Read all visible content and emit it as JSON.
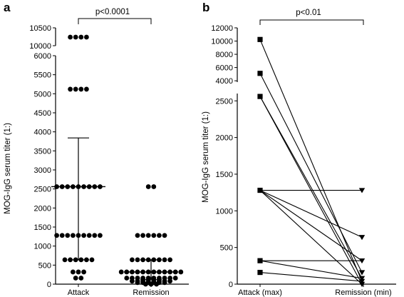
{
  "chart_data": [
    {
      "panel": "a",
      "type": "scatter",
      "ylabel": "MOG-IgG serum titer (1:)",
      "categories": [
        "Attack",
        "Remission"
      ],
      "y_axis_lower": {
        "range": [
          0,
          6000
        ],
        "ticks": [
          0,
          500,
          1000,
          1500,
          2000,
          2500,
          3000,
          3500,
          4000,
          4500,
          5000,
          5500,
          6000
        ]
      },
      "y_axis_upper": {
        "range": [
          10000,
          10500
        ],
        "ticks": [
          10000,
          10500
        ]
      },
      "significance": "p<0.0001",
      "series": [
        {
          "category": "Attack",
          "levels": [
            {
              "y": 10240,
              "count": 4
            },
            {
              "y": 5120,
              "count": 4
            },
            {
              "y": 2560,
              "count": 9
            },
            {
              "y": 1280,
              "count": 9
            },
            {
              "y": 640,
              "count": 6
            },
            {
              "y": 320,
              "count": 3
            },
            {
              "y": 160,
              "count": 2
            }
          ],
          "median": 2560,
          "upper": 3840,
          "lower": 640
        },
        {
          "category": "Remission",
          "levels": [
            {
              "y": 2560,
              "count": 2
            },
            {
              "y": 1280,
              "count": 6
            },
            {
              "y": 640,
              "count": 8
            },
            {
              "y": 320,
              "count": 12
            },
            {
              "y": 160,
              "count": 10
            },
            {
              "y": 80,
              "count": 8
            },
            {
              "y": 40,
              "count": 6
            },
            {
              "y": 0,
              "count": 3
            }
          ],
          "median": 320,
          "upper": 640,
          "lower": 120
        }
      ]
    },
    {
      "panel": "b",
      "type": "line",
      "ylabel": "MOG-IgG serum titer (1:)",
      "categories": [
        "Attack (max)",
        "Remission (min)"
      ],
      "y_axis_lower": {
        "range": [
          0,
          2600
        ],
        "ticks": [
          0,
          500,
          1000,
          1500,
          2000,
          2500
        ]
      },
      "y_axis_upper": {
        "range": [
          3800,
          12000
        ],
        "ticks": [
          4000,
          6000,
          8000,
          10000,
          12000
        ]
      },
      "significance": "p<0.01",
      "pairs": [
        [
          10240,
          40
        ],
        [
          5120,
          160
        ],
        [
          2560,
          80
        ],
        [
          2560,
          0
        ],
        [
          1280,
          1280
        ],
        [
          1280,
          640
        ],
        [
          1280,
          320
        ],
        [
          1280,
          0
        ],
        [
          320,
          320
        ],
        [
          320,
          80
        ],
        [
          160,
          40
        ]
      ]
    }
  ]
}
